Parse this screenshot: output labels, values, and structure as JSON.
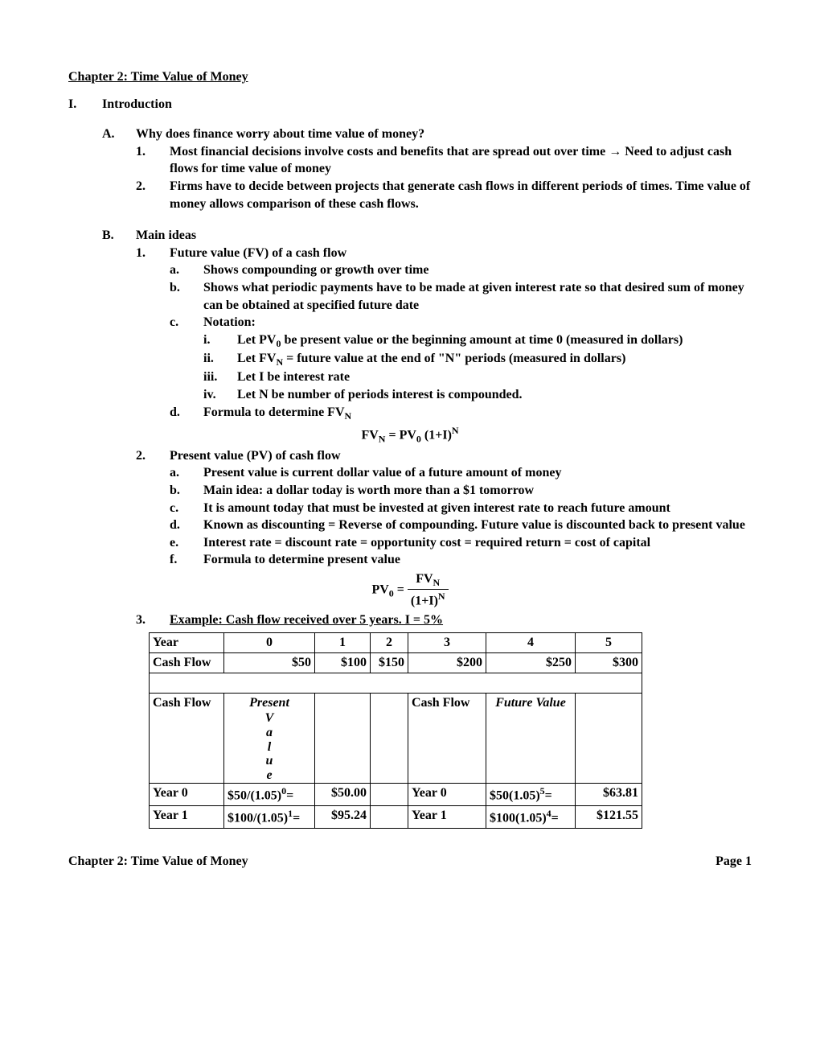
{
  "chapter_title": "Chapter 2: Time Value of Money",
  "section_I": {
    "marker": "I.",
    "title": "Introduction"
  },
  "A": {
    "marker": "A.",
    "title": "Why does finance worry about time value of money?",
    "items": [
      {
        "marker": "1.",
        "text": "Most financial decisions involve costs and benefits that are spread out over time → Need to adjust cash flows for time value of money"
      },
      {
        "marker": "2.",
        "text": "Firms have to decide between projects that generate cash flows in different periods of times.  Time value of money allows comparison of these cash flows."
      }
    ]
  },
  "B": {
    "marker": "B.",
    "title": "Main ideas",
    "item1": {
      "marker": "1.",
      "title": "Future value (FV) of a cash flow",
      "a": {
        "marker": "a.",
        "text": "Shows compounding or growth over time"
      },
      "b": {
        "marker": "b.",
        "text": "Shows what periodic payments have to be made at given interest rate so that desired sum of money can be obtained at specified future date"
      },
      "c": {
        "marker": "c.",
        "title": "Notation:",
        "i": {
          "marker": "i.",
          "text_pre": "Let PV",
          "sub": "0",
          "text_post": " be present value or the beginning amount at time 0 (measured in dollars)"
        },
        "ii": {
          "marker": "ii.",
          "text_pre": "Let FV",
          "sub": "N",
          "text_post": " = future value at the end of \"N\" periods (measured in dollars)"
        },
        "iii": {
          "marker": "iii.",
          "text": "Let I be interest rate"
        },
        "iv": {
          "marker": "iv.",
          "text": "Let N be number of periods interest is compounded."
        }
      },
      "d": {
        "marker": "d.",
        "text_pre": "Formula to determine FV",
        "sub": "N"
      },
      "formula": {
        "lhs": "FV",
        "lhs_sub": "N",
        "eq": " = ",
        "rhs": "PV",
        "rhs_sub": "0",
        "rhs2": " (1+I)",
        "rhs_sup": "N"
      }
    },
    "item2": {
      "marker": "2.",
      "title": "Present value (PV) of cash flow",
      "a": {
        "marker": "a.",
        "text": "Present value is current dollar value of a future amount of money"
      },
      "b": {
        "marker": "b.",
        "text": "Main idea: a dollar today is worth more than a $1 tomorrow"
      },
      "c": {
        "marker": "c.",
        "text": "It is amount today that must be invested at given interest rate to reach future amount"
      },
      "d": {
        "marker": "d.",
        "text": "Known as discounting = Reverse of compounding.  Future value is discounted back to present value"
      },
      "e": {
        "marker": "e.",
        "text": "Interest rate = discount rate = opportunity cost = required return = cost of capital"
      },
      "f": {
        "marker": "f.",
        "text": "Formula to determine present value"
      },
      "formula": {
        "lhs": "PV",
        "lhs_sub": "0",
        "eq": " = ",
        "num": "FV",
        "num_sub": "N",
        "den": "(1+I)",
        "den_sup": "N"
      }
    },
    "item3": {
      "marker": "3.",
      "title": "Example: Cash flow received over 5 years.  I = 5%"
    }
  },
  "table": {
    "header_years": [
      "Year",
      "0",
      "1",
      "2",
      "3",
      "4",
      "5"
    ],
    "cashflow_row": [
      "Cash Flow",
      "$50",
      "$100",
      "$150",
      "$200",
      "$250",
      "$300"
    ],
    "pv_header_left": "Cash Flow",
    "pv_header_pv_word": "Present",
    "pv_header_pv_vertical": [
      "V",
      "a",
      "l",
      "u",
      "e"
    ],
    "pv_header_right": "Cash Flow",
    "pv_header_fv": "Future Value",
    "rows": [
      {
        "year_l": "Year 0",
        "pv_formula_base": "$50/(1.05)",
        "pv_exp": "0",
        "pv_eq": "=",
        "pv_val": "$50.00",
        "year_r": "Year 0",
        "fv_formula_base": "$50(1.05)",
        "fv_exp": "5",
        "fv_eq": "=",
        "fv_val": "$63.81"
      },
      {
        "year_l": "Year 1",
        "pv_formula_base": "$100/(1.05)",
        "pv_exp": "1",
        "pv_eq": "=",
        "pv_val": "$95.24",
        "year_r": "Year 1",
        "fv_formula_base": "$100(1.05)",
        "fv_exp": "4",
        "fv_eq": "=",
        "fv_val": "$121.55"
      }
    ]
  },
  "footer": {
    "left": "Chapter 2: Time Value of Money",
    "right": "Page 1"
  }
}
